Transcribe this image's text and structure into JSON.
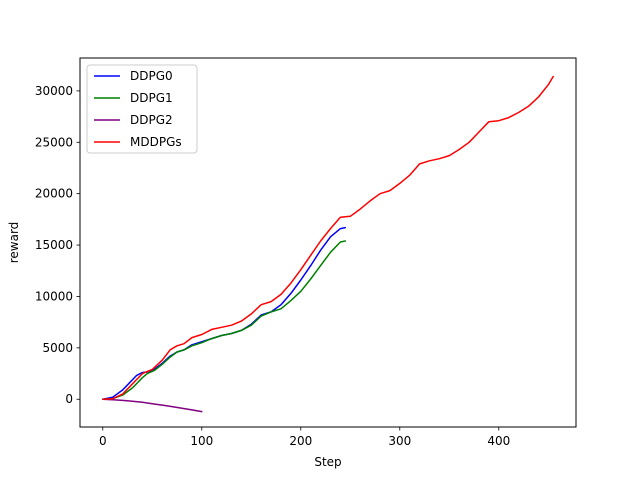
{
  "chart_data": {
    "type": "line",
    "title": "",
    "xlabel": "Step",
    "ylabel": "reward",
    "xlim": [
      -23,
      478
    ],
    "ylim": [
      -2700,
      33200
    ],
    "xticks": [
      0,
      100,
      200,
      300,
      400
    ],
    "yticks": [
      0,
      5000,
      10000,
      15000,
      20000,
      25000,
      30000
    ],
    "grid": false,
    "legend_position": "top-left",
    "series": [
      {
        "name": "DDPG0",
        "color": "#0000ff",
        "x": [
          0,
          10,
          20,
          27,
          34,
          40,
          45,
          52,
          60,
          68,
          75,
          82,
          90,
          100,
          110,
          120,
          130,
          140,
          150,
          160,
          170,
          180,
          190,
          200,
          210,
          220,
          230,
          240,
          245
        ],
        "y": [
          0,
          200,
          900,
          1600,
          2300,
          2600,
          2650,
          2900,
          3500,
          4200,
          4600,
          4800,
          5300,
          5600,
          5900,
          6200,
          6400,
          6700,
          7300,
          8200,
          8500,
          9200,
          10300,
          11600,
          13000,
          14500,
          15800,
          16600,
          16700
        ]
      },
      {
        "name": "DDPG1",
        "color": "#008000",
        "x": [
          0,
          10,
          20,
          30,
          40,
          45,
          52,
          60,
          68,
          75,
          82,
          90,
          100,
          110,
          120,
          130,
          140,
          150,
          160,
          170,
          180,
          190,
          200,
          210,
          220,
          230,
          240,
          245
        ],
        "y": [
          0,
          50,
          400,
          1100,
          2100,
          2500,
          2800,
          3400,
          4100,
          4600,
          4800,
          5200,
          5500,
          5900,
          6200,
          6400,
          6700,
          7200,
          8100,
          8500,
          8800,
          9600,
          10500,
          11700,
          13000,
          14300,
          15300,
          15400
        ]
      },
      {
        "name": "DDPG2",
        "color": "#800080",
        "x": [
          0,
          10,
          20,
          30,
          40,
          50,
          60,
          70,
          80,
          90,
          100
        ],
        "y": [
          0,
          -40,
          -110,
          -200,
          -300,
          -430,
          -570,
          -720,
          -880,
          -1040,
          -1200
        ]
      },
      {
        "name": "MDDPGs",
        "color": "#ff0000",
        "x": [
          0,
          10,
          20,
          30,
          40,
          45,
          50,
          60,
          68,
          75,
          82,
          90,
          100,
          110,
          120,
          130,
          140,
          150,
          160,
          170,
          180,
          190,
          200,
          210,
          220,
          230,
          240,
          250,
          260,
          270,
          280,
          290,
          300,
          310,
          320,
          330,
          340,
          350,
          360,
          370,
          380,
          390,
          400,
          410,
          420,
          430,
          440,
          450,
          455
        ],
        "y": [
          0,
          50,
          500,
          1500,
          2500,
          2700,
          2900,
          3800,
          4800,
          5200,
          5400,
          6000,
          6300,
          6800,
          7000,
          7200,
          7600,
          8300,
          9200,
          9500,
          10200,
          11300,
          12600,
          14000,
          15400,
          16600,
          17700,
          17800,
          18500,
          19300,
          20000,
          20300,
          21000,
          21800,
          22900,
          23200,
          23400,
          23700,
          24300,
          25000,
          26000,
          27000,
          27100,
          27400,
          27900,
          28500,
          29400,
          30600,
          31400
        ]
      }
    ]
  }
}
